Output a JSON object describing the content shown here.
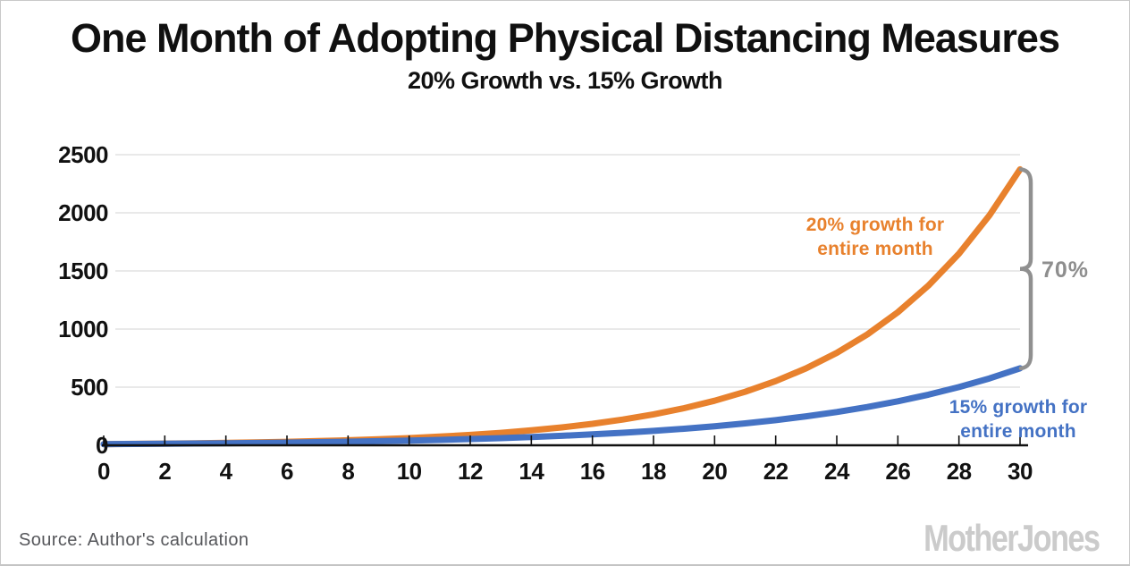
{
  "header": {
    "title": "One Month of Adopting Physical Distancing Measures",
    "subtitle": "20% Growth vs. 15% Growth"
  },
  "chart_data": {
    "type": "line",
    "title": "One Month of Adopting Physical Distancing Measures",
    "subtitle": "20% Growth vs. 15% Growth",
    "xlabel": "",
    "ylabel": "",
    "xlim": [
      0,
      30
    ],
    "ylim": [
      0,
      2500
    ],
    "x_ticks": [
      0,
      2,
      4,
      6,
      8,
      10,
      12,
      14,
      16,
      18,
      20,
      22,
      24,
      26,
      28,
      30
    ],
    "y_ticks": [
      0,
      500,
      1000,
      1500,
      2000,
      2500
    ],
    "grid": true,
    "legend_position": "inline-annotations",
    "x": [
      0,
      1,
      2,
      3,
      4,
      5,
      6,
      7,
      8,
      9,
      10,
      11,
      12,
      13,
      14,
      15,
      16,
      17,
      18,
      19,
      20,
      21,
      22,
      23,
      24,
      25,
      26,
      27,
      28,
      29,
      30
    ],
    "series": [
      {
        "name": "20% growth for entire month",
        "color": "#E8812D",
        "values": [
          10,
          12,
          14.4,
          17.3,
          20.7,
          24.9,
          29.9,
          35.8,
          43,
          51.6,
          61.9,
          74.3,
          89.2,
          107,
          128.4,
          154.1,
          184.9,
          221.9,
          266.2,
          319.5,
          383.4,
          460.1,
          552.1,
          662.5,
          795,
          953.9,
          1144.7,
          1373.7,
          1648.4,
          1978.1,
          2373.8
        ]
      },
      {
        "name": "15% growth for entire month",
        "color": "#4472C4",
        "values": [
          10,
          11.5,
          13.2,
          15.2,
          17.5,
          20.1,
          23.1,
          26.6,
          30.6,
          35.2,
          40.5,
          46.5,
          53.5,
          61.5,
          70.8,
          81.4,
          93.6,
          107.6,
          123.8,
          142.3,
          163.7,
          188.2,
          216.4,
          248.9,
          286.3,
          329.2,
          378.6,
          435.3,
          500.6,
          575.7,
          662.1
        ]
      }
    ],
    "annotations": {
      "series1_label": {
        "line1": "20% growth for",
        "line2": "entire month",
        "color": "#E8812D"
      },
      "series2_label": {
        "line1": "15% growth for",
        "line2": "entire month",
        "color": "#4472C4"
      },
      "brace_label": "70%",
      "brace_color": "#909090"
    },
    "colors": {
      "gridline": "#dcdcdc",
      "axis": "#111111",
      "tick_text": "#111111"
    }
  },
  "footer": {
    "source": "Source: Author's calculation",
    "logo": "MotherJones"
  }
}
